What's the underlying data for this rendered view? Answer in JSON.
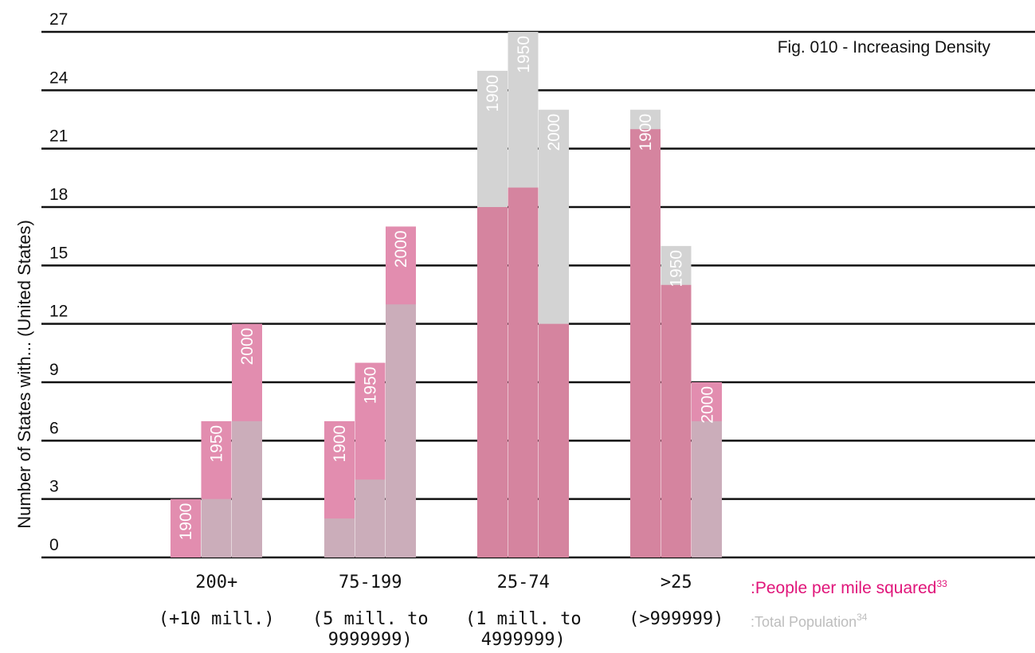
{
  "chart_data": {
    "type": "bar",
    "title": "Fig. 010 - Increasing Density",
    "ylabel": "Number of States with... (United States)",
    "ylim": [
      0,
      27
    ],
    "yticks": [
      0,
      3,
      6,
      9,
      12,
      15,
      18,
      21,
      24,
      27
    ],
    "grid": true,
    "categories": [
      {
        "label": "200+",
        "sub": [
          "(+10 mill.)"
        ]
      },
      {
        "label": "75-199",
        "sub": [
          "(5 mill. to",
          "9999999)"
        ]
      },
      {
        "label": "25-74",
        "sub": [
          "(1 mill. to",
          "4999999)"
        ]
      },
      {
        "label": ">25",
        "sub": [
          "(>999999)"
        ]
      }
    ],
    "years": [
      "1900",
      "1950",
      "2000"
    ],
    "series": [
      {
        "name": ":People per mile squared",
        "note": "33",
        "color": "#cf2f74",
        "values": [
          [
            3,
            7,
            12
          ],
          [
            7,
            10,
            17
          ],
          [
            18,
            19,
            12
          ],
          [
            22,
            14,
            9
          ]
        ]
      },
      {
        "name": ":Total Population",
        "note": "34",
        "color": "#c7c7c7",
        "values": [
          [
            null,
            3,
            7
          ],
          [
            2,
            4,
            13
          ],
          [
            25,
            27,
            23
          ],
          [
            23,
            16,
            7
          ]
        ]
      }
    ],
    "legend_position": "bottom-right"
  }
}
